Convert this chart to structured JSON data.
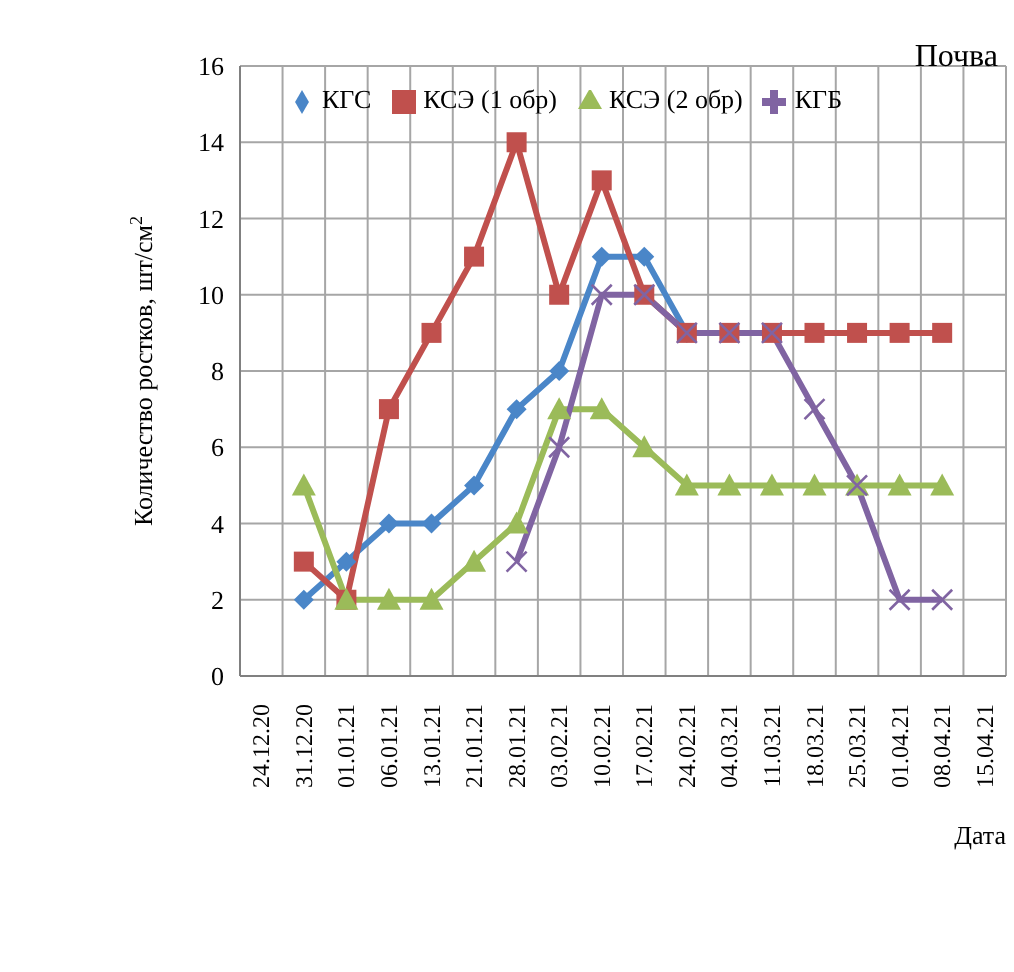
{
  "chart_data": {
    "type": "line",
    "title": "Почва",
    "xlabel": "Дата",
    "ylabel": "Количество ростков, шт/см$^{2}$",
    "categories": [
      "24.12.20",
      "31.12.20",
      "01.01.21",
      "06.01.21",
      "13.01.21",
      "21.01.21",
      "28.01.21",
      "03.02.21",
      "10.02.21",
      "17.02.21",
      "24.02.21",
      "04.03.21",
      "11.03.21",
      "18.03.21",
      "25.03.21",
      "01.04.21",
      "08.04.21",
      "15.04.21"
    ],
    "series": [
      {
        "name": "КГС",
        "color": "#4a86c8",
        "marker": "diamond",
        "values": [
          null,
          2,
          3,
          4,
          4,
          5,
          7,
          8,
          11,
          11,
          9,
          null,
          null,
          null,
          null,
          null,
          null,
          null
        ]
      },
      {
        "name": "КСЭ (1 обр)",
        "color": "#c0504d",
        "marker": "square",
        "values": [
          null,
          3,
          2,
          7,
          9,
          11,
          14,
          10,
          13,
          10,
          9,
          9,
          9,
          9,
          9,
          9,
          9,
          null
        ]
      },
      {
        "name": "КСЭ (2 обр)",
        "color": "#9bbb59",
        "marker": "triangle",
        "values": [
          null,
          5,
          2,
          2,
          2,
          3,
          4,
          7,
          7,
          6,
          5,
          5,
          5,
          5,
          5,
          5,
          5,
          null
        ]
      },
      {
        "name": "КГБ",
        "color": "#8064a2",
        "marker": "cross",
        "values": [
          null,
          null,
          null,
          null,
          null,
          null,
          3,
          6,
          10,
          10,
          9,
          9,
          9,
          7,
          5,
          2,
          2,
          null
        ]
      }
    ],
    "ylim": [
      0,
      16
    ],
    "yticks": [
      0,
      2,
      4,
      6,
      8,
      10,
      12,
      14,
      16
    ],
    "grid": true,
    "legend": "top",
    "line_style": "solid"
  }
}
